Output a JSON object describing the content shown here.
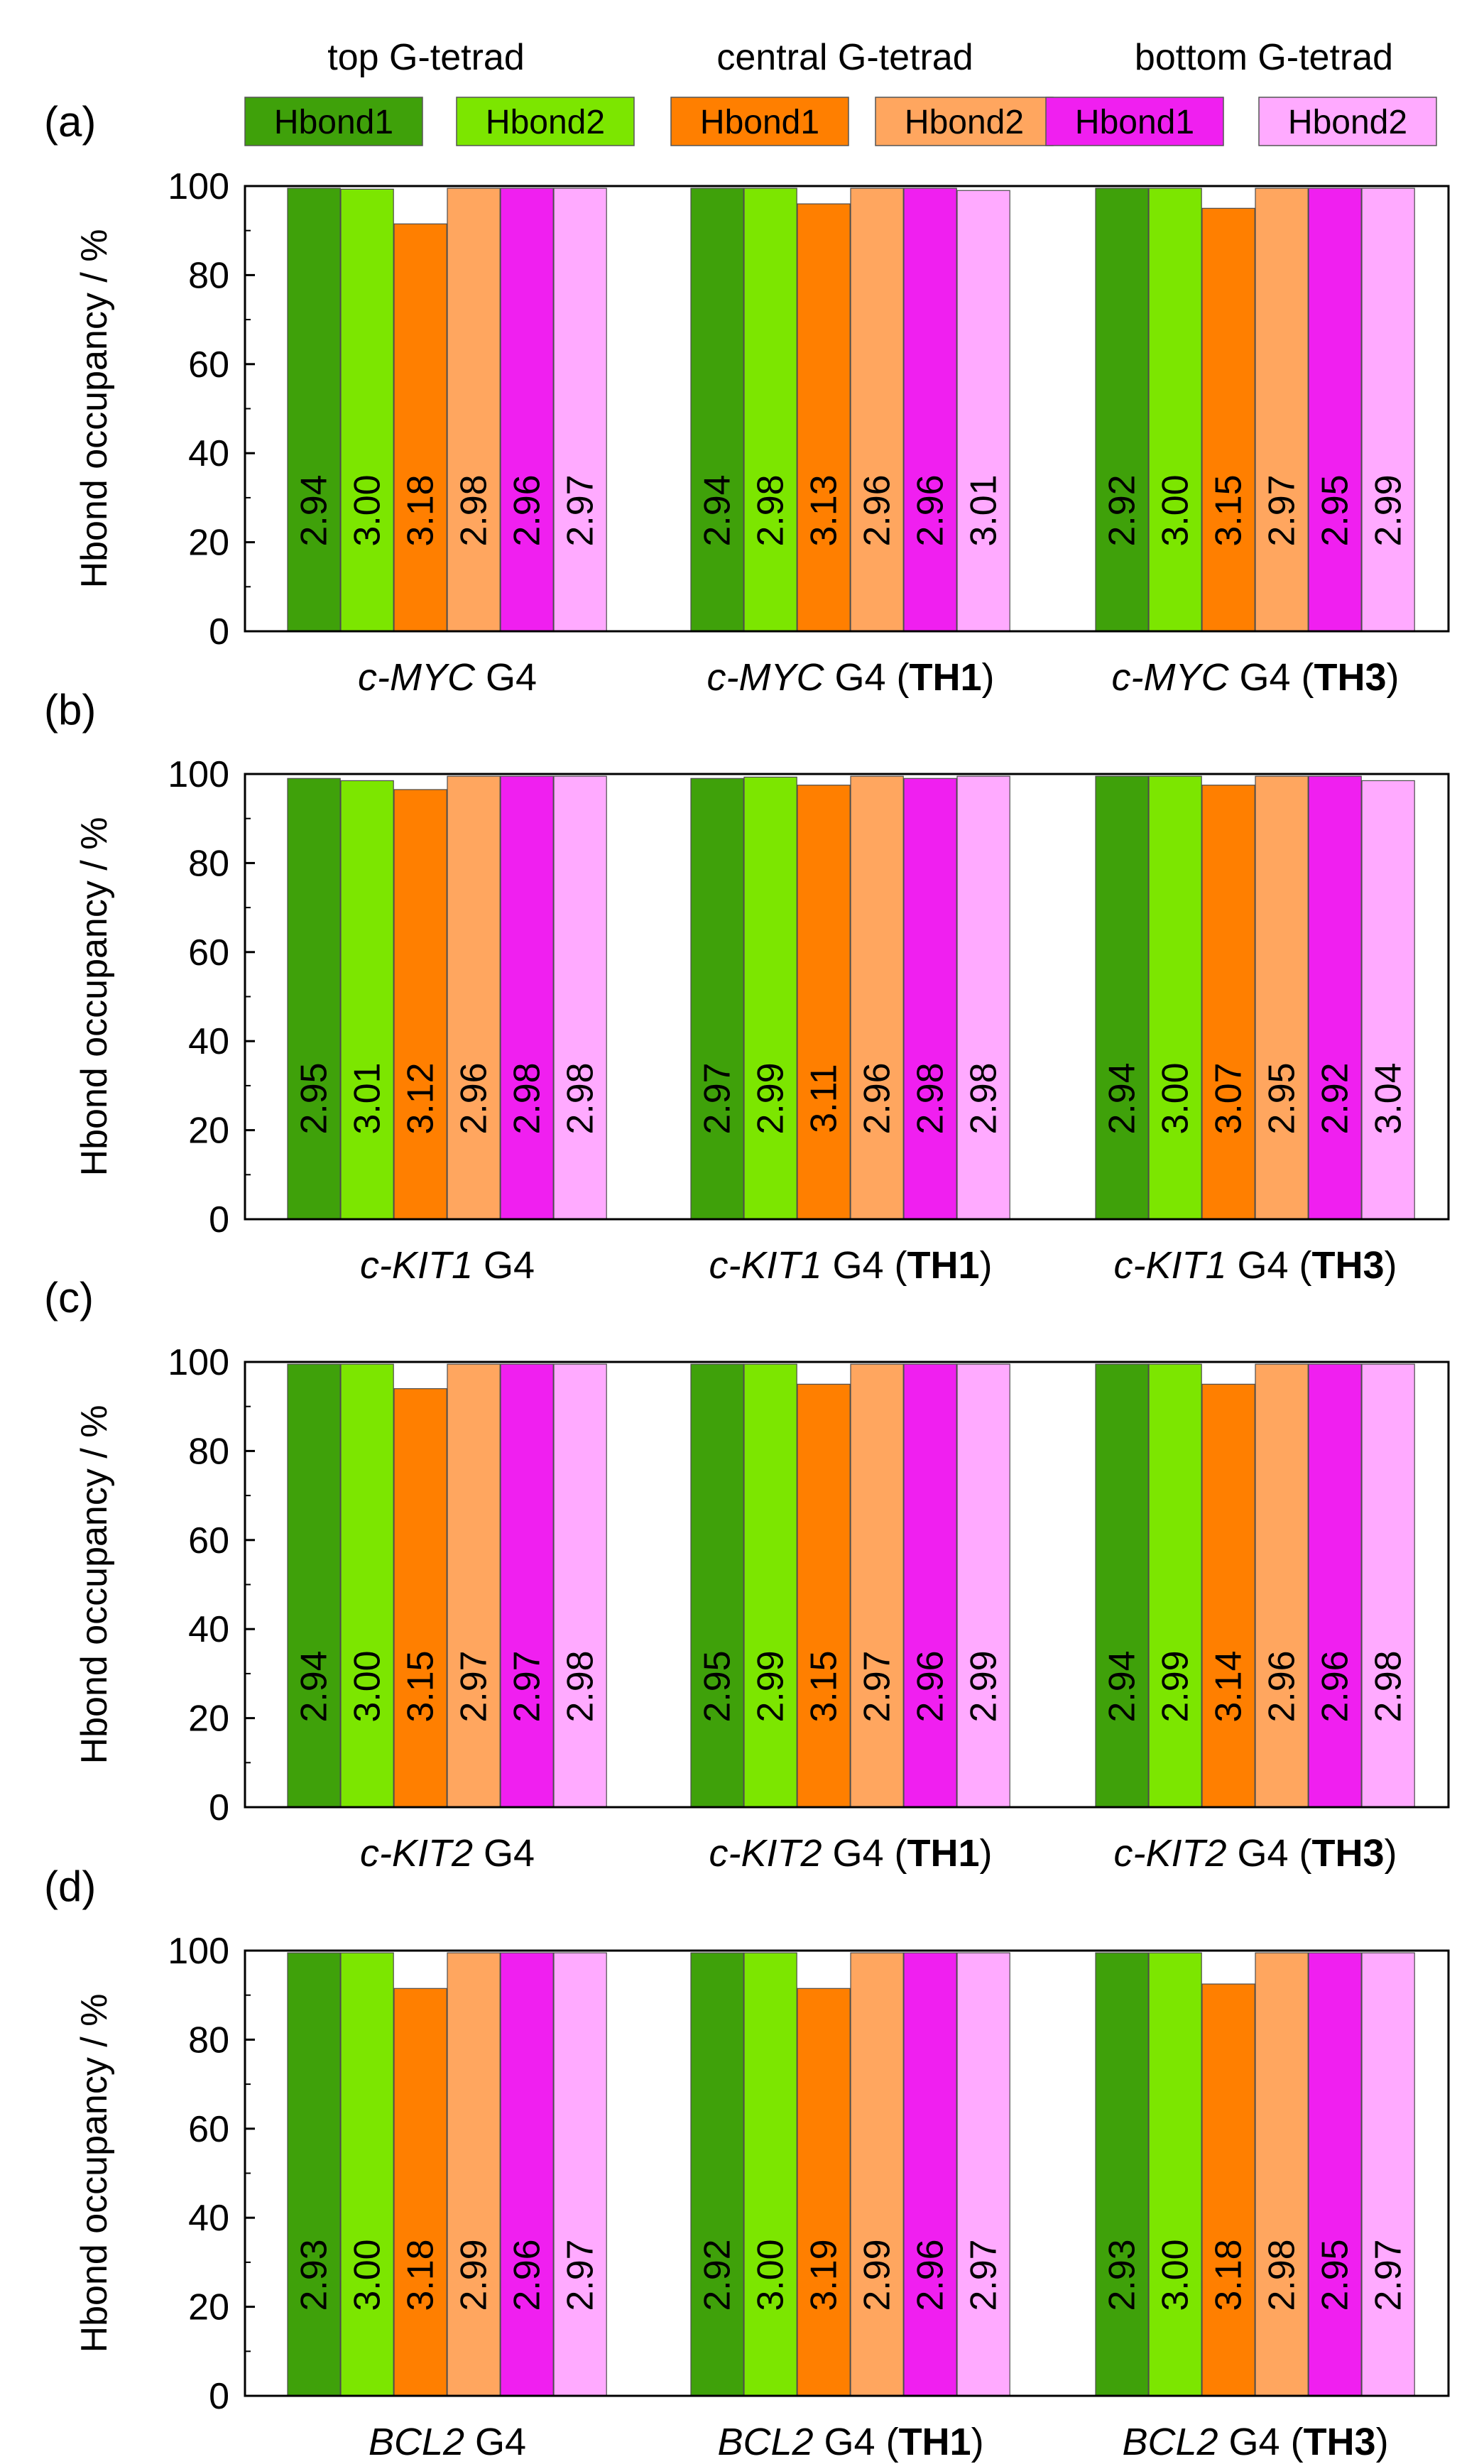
{
  "legend": {
    "groups": [
      {
        "title": "top G-tetrad",
        "items": [
          {
            "label": "Hbond1",
            "color": "#3fa10a"
          },
          {
            "label": "Hbond2",
            "color": "#7ce600"
          }
        ]
      },
      {
        "title": "central G-tetrad",
        "items": [
          {
            "label": "Hbond1",
            "color": "#ff7f00"
          },
          {
            "label": "Hbond2",
            "color": "#ffa65f"
          }
        ]
      },
      {
        "title": "bottom G-tetrad",
        "items": [
          {
            "label": "Hbond1",
            "color": "#f01ff0"
          },
          {
            "label": "Hbond2",
            "color": "#ffaaff"
          }
        ]
      }
    ]
  },
  "chart_data": [
    {
      "type": "bar",
      "panel": "(a)",
      "ylabel": "Hbond occupancy / %",
      "ylim": [
        0,
        100
      ],
      "yticks": [
        0,
        20,
        40,
        60,
        80,
        100
      ],
      "categories": [
        {
          "italic": "c-MYC",
          "rest": " G4",
          "paren": ""
        },
        {
          "italic": "c-MYC",
          "rest": " G4 (",
          "paren": "TH1"
        },
        {
          "italic": "c-MYC",
          "rest": " G4 (",
          "paren": "TH3"
        }
      ],
      "series": [
        {
          "name": "top Hbond1",
          "values": [
            99.5,
            99.5,
            99.5
          ],
          "labels": [
            "2.94",
            "2.94",
            "2.92"
          ]
        },
        {
          "name": "top Hbond2",
          "values": [
            99.3,
            99.5,
            99.5
          ],
          "labels": [
            "3.00",
            "2.98",
            "3.00"
          ]
        },
        {
          "name": "central Hbond1",
          "values": [
            91.5,
            96,
            95
          ],
          "labels": [
            "3.18",
            "3.13",
            "3.15"
          ]
        },
        {
          "name": "central Hbond2",
          "values": [
            99.5,
            99.5,
            99.5
          ],
          "labels": [
            "2.98",
            "2.96",
            "2.97"
          ]
        },
        {
          "name": "bottom Hbond1",
          "values": [
            99.5,
            99.5,
            99.5
          ],
          "labels": [
            "2.96",
            "2.96",
            "2.95"
          ]
        },
        {
          "name": "bottom Hbond2",
          "values": [
            99.5,
            99,
            99.5
          ],
          "labels": [
            "2.97",
            "3.01",
            "2.99"
          ]
        }
      ]
    },
    {
      "type": "bar",
      "panel": "(b)",
      "ylabel": "Hbond occupancy / %",
      "ylim": [
        0,
        100
      ],
      "yticks": [
        0,
        20,
        40,
        60,
        80,
        100
      ],
      "categories": [
        {
          "italic": "c-KIT1",
          "rest": " G4",
          "paren": ""
        },
        {
          "italic": "c-KIT1",
          "rest": " G4 (",
          "paren": "TH1"
        },
        {
          "italic": "c-KIT1",
          "rest": " G4 (",
          "paren": "TH3"
        }
      ],
      "series": [
        {
          "name": "top Hbond1",
          "values": [
            99,
            99,
            99.5
          ],
          "labels": [
            "2.95",
            "2.97",
            "2.94"
          ]
        },
        {
          "name": "top Hbond2",
          "values": [
            98.5,
            99.3,
            99.5
          ],
          "labels": [
            "3.01",
            "2.99",
            "3.00"
          ]
        },
        {
          "name": "central Hbond1",
          "values": [
            96.5,
            97.5,
            97.5
          ],
          "labels": [
            "3.12",
            "3.11",
            "3.07"
          ]
        },
        {
          "name": "central Hbond2",
          "values": [
            99.5,
            99.5,
            99.5
          ],
          "labels": [
            "2.96",
            "2.96",
            "2.95"
          ]
        },
        {
          "name": "bottom Hbond1",
          "values": [
            99.5,
            99,
            99.5
          ],
          "labels": [
            "2.98",
            "2.98",
            "2.92"
          ]
        },
        {
          "name": "bottom Hbond2",
          "values": [
            99.5,
            99.5,
            98.5
          ],
          "labels": [
            "2.98",
            "2.98",
            "3.04"
          ]
        }
      ]
    },
    {
      "type": "bar",
      "panel": "(c)",
      "ylabel": "Hbond occupancy / %",
      "ylim": [
        0,
        100
      ],
      "yticks": [
        0,
        20,
        40,
        60,
        80,
        100
      ],
      "categories": [
        {
          "italic": "c-KIT2",
          "rest": " G4",
          "paren": ""
        },
        {
          "italic": "c-KIT2",
          "rest": " G4 (",
          "paren": "TH1"
        },
        {
          "italic": "c-KIT2",
          "rest": " G4 (",
          "paren": "TH3"
        }
      ],
      "series": [
        {
          "name": "top Hbond1",
          "values": [
            99.5,
            99.5,
            99.5
          ],
          "labels": [
            "2.94",
            "2.95",
            "2.94"
          ]
        },
        {
          "name": "top Hbond2",
          "values": [
            99.5,
            99.5,
            99.5
          ],
          "labels": [
            "3.00",
            "2.99",
            "2.99"
          ]
        },
        {
          "name": "central Hbond1",
          "values": [
            94,
            95,
            95
          ],
          "labels": [
            "3.15",
            "3.15",
            "3.14"
          ]
        },
        {
          "name": "central Hbond2",
          "values": [
            99.5,
            99.5,
            99.5
          ],
          "labels": [
            "2.97",
            "2.97",
            "2.96"
          ]
        },
        {
          "name": "bottom Hbond1",
          "values": [
            99.5,
            99.5,
            99.5
          ],
          "labels": [
            "2.97",
            "2.96",
            "2.96"
          ]
        },
        {
          "name": "bottom Hbond2",
          "values": [
            99.5,
            99.5,
            99.5
          ],
          "labels": [
            "2.98",
            "2.99",
            "2.98"
          ]
        }
      ]
    },
    {
      "type": "bar",
      "panel": "(d)",
      "ylabel": "Hbond occupancy / %",
      "ylim": [
        0,
        100
      ],
      "yticks": [
        0,
        20,
        40,
        60,
        80,
        100
      ],
      "categories": [
        {
          "italic": "BCL2",
          "rest": " G4",
          "paren": ""
        },
        {
          "italic": "BCL2",
          "rest": " G4 (",
          "paren": "TH1"
        },
        {
          "italic": "BCL2",
          "rest": " G4 (",
          "paren": "TH3"
        }
      ],
      "series": [
        {
          "name": "top Hbond1",
          "values": [
            99.5,
            99.5,
            99.5
          ],
          "labels": [
            "2.93",
            "2.92",
            "2.93"
          ]
        },
        {
          "name": "top Hbond2",
          "values": [
            99.5,
            99.5,
            99.5
          ],
          "labels": [
            "3.00",
            "3.00",
            "3.00"
          ]
        },
        {
          "name": "central Hbond1",
          "values": [
            91.5,
            91.5,
            92.5
          ],
          "labels": [
            "3.18",
            "3.19",
            "3.18"
          ]
        },
        {
          "name": "central Hbond2",
          "values": [
            99.5,
            99.5,
            99.5
          ],
          "labels": [
            "2.99",
            "2.99",
            "2.98"
          ]
        },
        {
          "name": "bottom Hbond1",
          "values": [
            99.5,
            99.5,
            99.5
          ],
          "labels": [
            "2.96",
            "2.96",
            "2.95"
          ]
        },
        {
          "name": "bottom Hbond2",
          "values": [
            99.5,
            99.5,
            99.5
          ],
          "labels": [
            "2.97",
            "2.97",
            "2.97"
          ]
        }
      ]
    }
  ]
}
